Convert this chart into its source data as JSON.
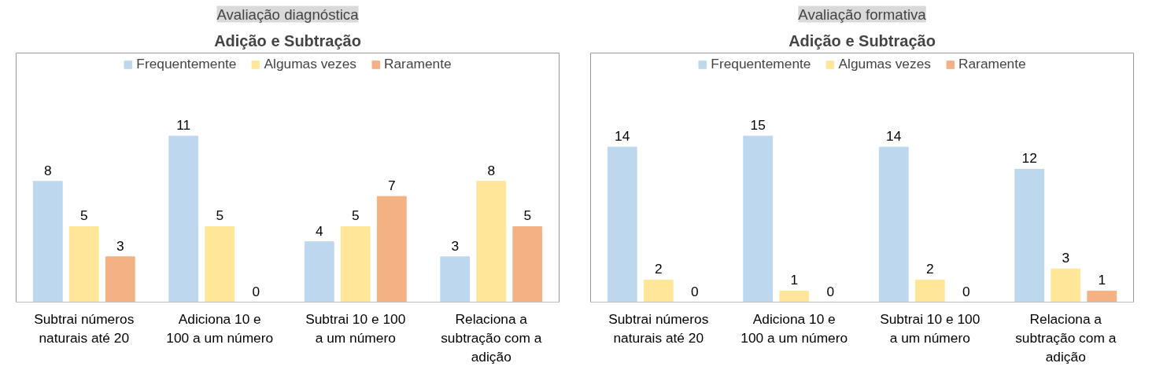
{
  "chart_data": [
    {
      "type": "bar",
      "subtitle": "Avaliação diagnóstica",
      "title": "Adição e Subtração",
      "categories": [
        "Subtrai números naturais até 20",
        "Adiciona 10 e 100 a um número",
        "Subtrai 10 e 100 a um número",
        "Relaciona a subtração com a adição"
      ],
      "series": [
        {
          "name": "Frequentemente",
          "color": "#bdd7ee",
          "values": [
            8,
            11,
            4,
            3
          ]
        },
        {
          "name": "Algumas vezes",
          "color": "#ffe699",
          "values": [
            5,
            5,
            5,
            8
          ]
        },
        {
          "name": "Raramente",
          "color": "#f4b183",
          "values": [
            3,
            0,
            7,
            5
          ]
        }
      ],
      "data_labels": true,
      "legend": "top",
      "grid": false
    },
    {
      "type": "bar",
      "subtitle": "Avaliação formativa",
      "title": "Adição e Subtração",
      "categories": [
        "Subtrai números naturais até 20",
        "Adiciona 10 e 100 a um número",
        "Subtrai 10 e 100 a um número",
        "Relaciona a subtração com a adição"
      ],
      "series": [
        {
          "name": "Frequentemente",
          "color": "#bdd7ee",
          "values": [
            14,
            15,
            14,
            12
          ]
        },
        {
          "name": "Algumas vezes",
          "color": "#ffe699",
          "values": [
            2,
            1,
            2,
            3
          ]
        },
        {
          "name": "Raramente",
          "color": "#f4b183",
          "values": [
            0,
            0,
            0,
            1
          ]
        }
      ],
      "data_labels": true,
      "legend": "top",
      "grid": false
    }
  ]
}
